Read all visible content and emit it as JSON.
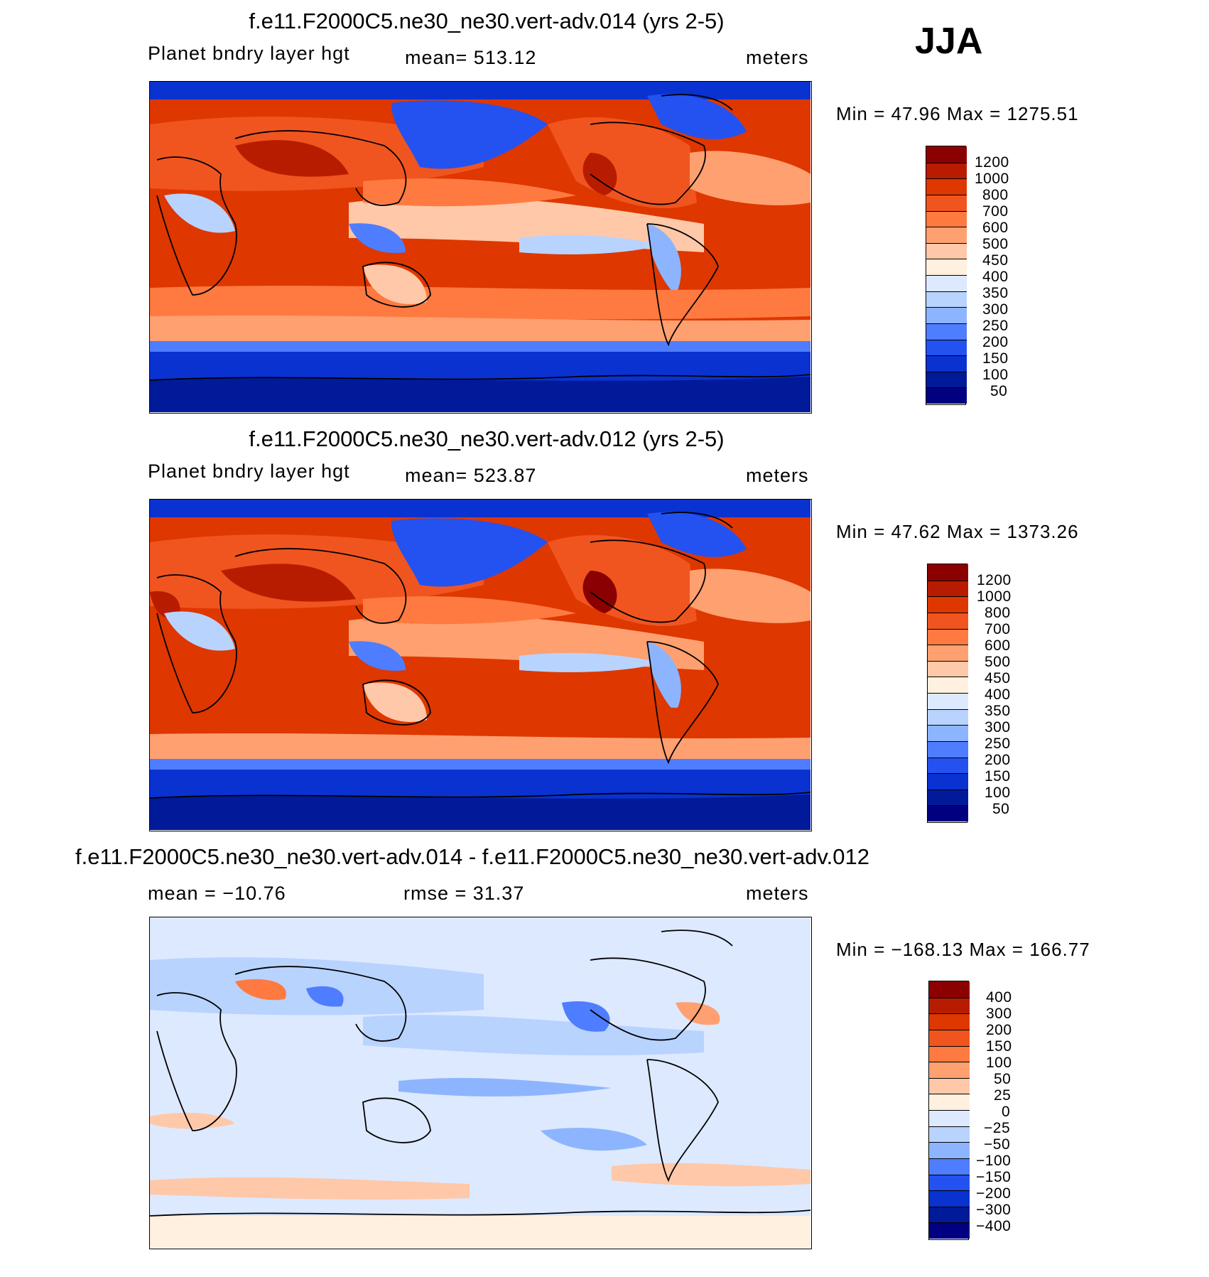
{
  "season": "JJA",
  "panels": [
    {
      "id": "top",
      "title": "f.e11.F2000C5.ne30_ne30.vert-adv.014 (yrs 2-5)",
      "left_label": "Planet bndry layer hgt",
      "center_label": "mean= 513.12",
      "right_label": "meters",
      "minmax": "Min =   47.96 Max = 1275.51",
      "colorbar": {
        "levels": [
          "1200",
          "1000",
          "800",
          "700",
          "600",
          "500",
          "450",
          "400",
          "350",
          "300",
          "250",
          "200",
          "150",
          "100",
          "50"
        ],
        "colors": [
          "#8b0000",
          "#b81c00",
          "#de3700",
          "#f05520",
          "#ff7a40",
          "#ffa070",
          "#ffc8a8",
          "#fff0e0",
          "#dde9ff",
          "#b9d3ff",
          "#8db5ff",
          "#4f7dff",
          "#2352f0",
          "#0a32d0",
          "#001a9a",
          "#000080"
        ]
      }
    },
    {
      "id": "middle",
      "title": "f.e11.F2000C5.ne30_ne30.vert-adv.012 (yrs 2-5)",
      "left_label": "Planet bndry layer hgt",
      "center_label": "mean= 523.87",
      "right_label": "meters",
      "minmax": "Min =   47.62 Max = 1373.26",
      "colorbar": {
        "levels": [
          "1200",
          "1000",
          "800",
          "700",
          "600",
          "500",
          "450",
          "400",
          "350",
          "300",
          "250",
          "200",
          "150",
          "100",
          "50"
        ],
        "colors": [
          "#8b0000",
          "#b81c00",
          "#de3700",
          "#f05520",
          "#ff7a40",
          "#ffa070",
          "#ffc8a8",
          "#fff0e0",
          "#dde9ff",
          "#b9d3ff",
          "#8db5ff",
          "#4f7dff",
          "#2352f0",
          "#0a32d0",
          "#001a9a",
          "#000080"
        ]
      }
    },
    {
      "id": "bottom",
      "title": "f.e11.F2000C5.ne30_ne30.vert-adv.014 - f.e11.F2000C5.ne30_ne30.vert-adv.012",
      "left_label": "mean = −10.76",
      "center_label": "rmse =   31.37",
      "right_label": "meters",
      "minmax": "Min = −168.13 Max = 166.77",
      "colorbar": {
        "levels": [
          "400",
          "300",
          "200",
          "150",
          "100",
          "50",
          "25",
          "0",
          "−25",
          "−50",
          "−100",
          "−150",
          "−200",
          "−300",
          "−400"
        ],
        "colors": [
          "#8b0000",
          "#b81c00",
          "#de3700",
          "#f05520",
          "#ff7a40",
          "#ffa070",
          "#ffc8a8",
          "#fff0e0",
          "#dde9ff",
          "#b9d3ff",
          "#8db5ff",
          "#4f7dff",
          "#2352f0",
          "#0a32d0",
          "#001a9a",
          "#000080"
        ]
      }
    }
  ]
}
